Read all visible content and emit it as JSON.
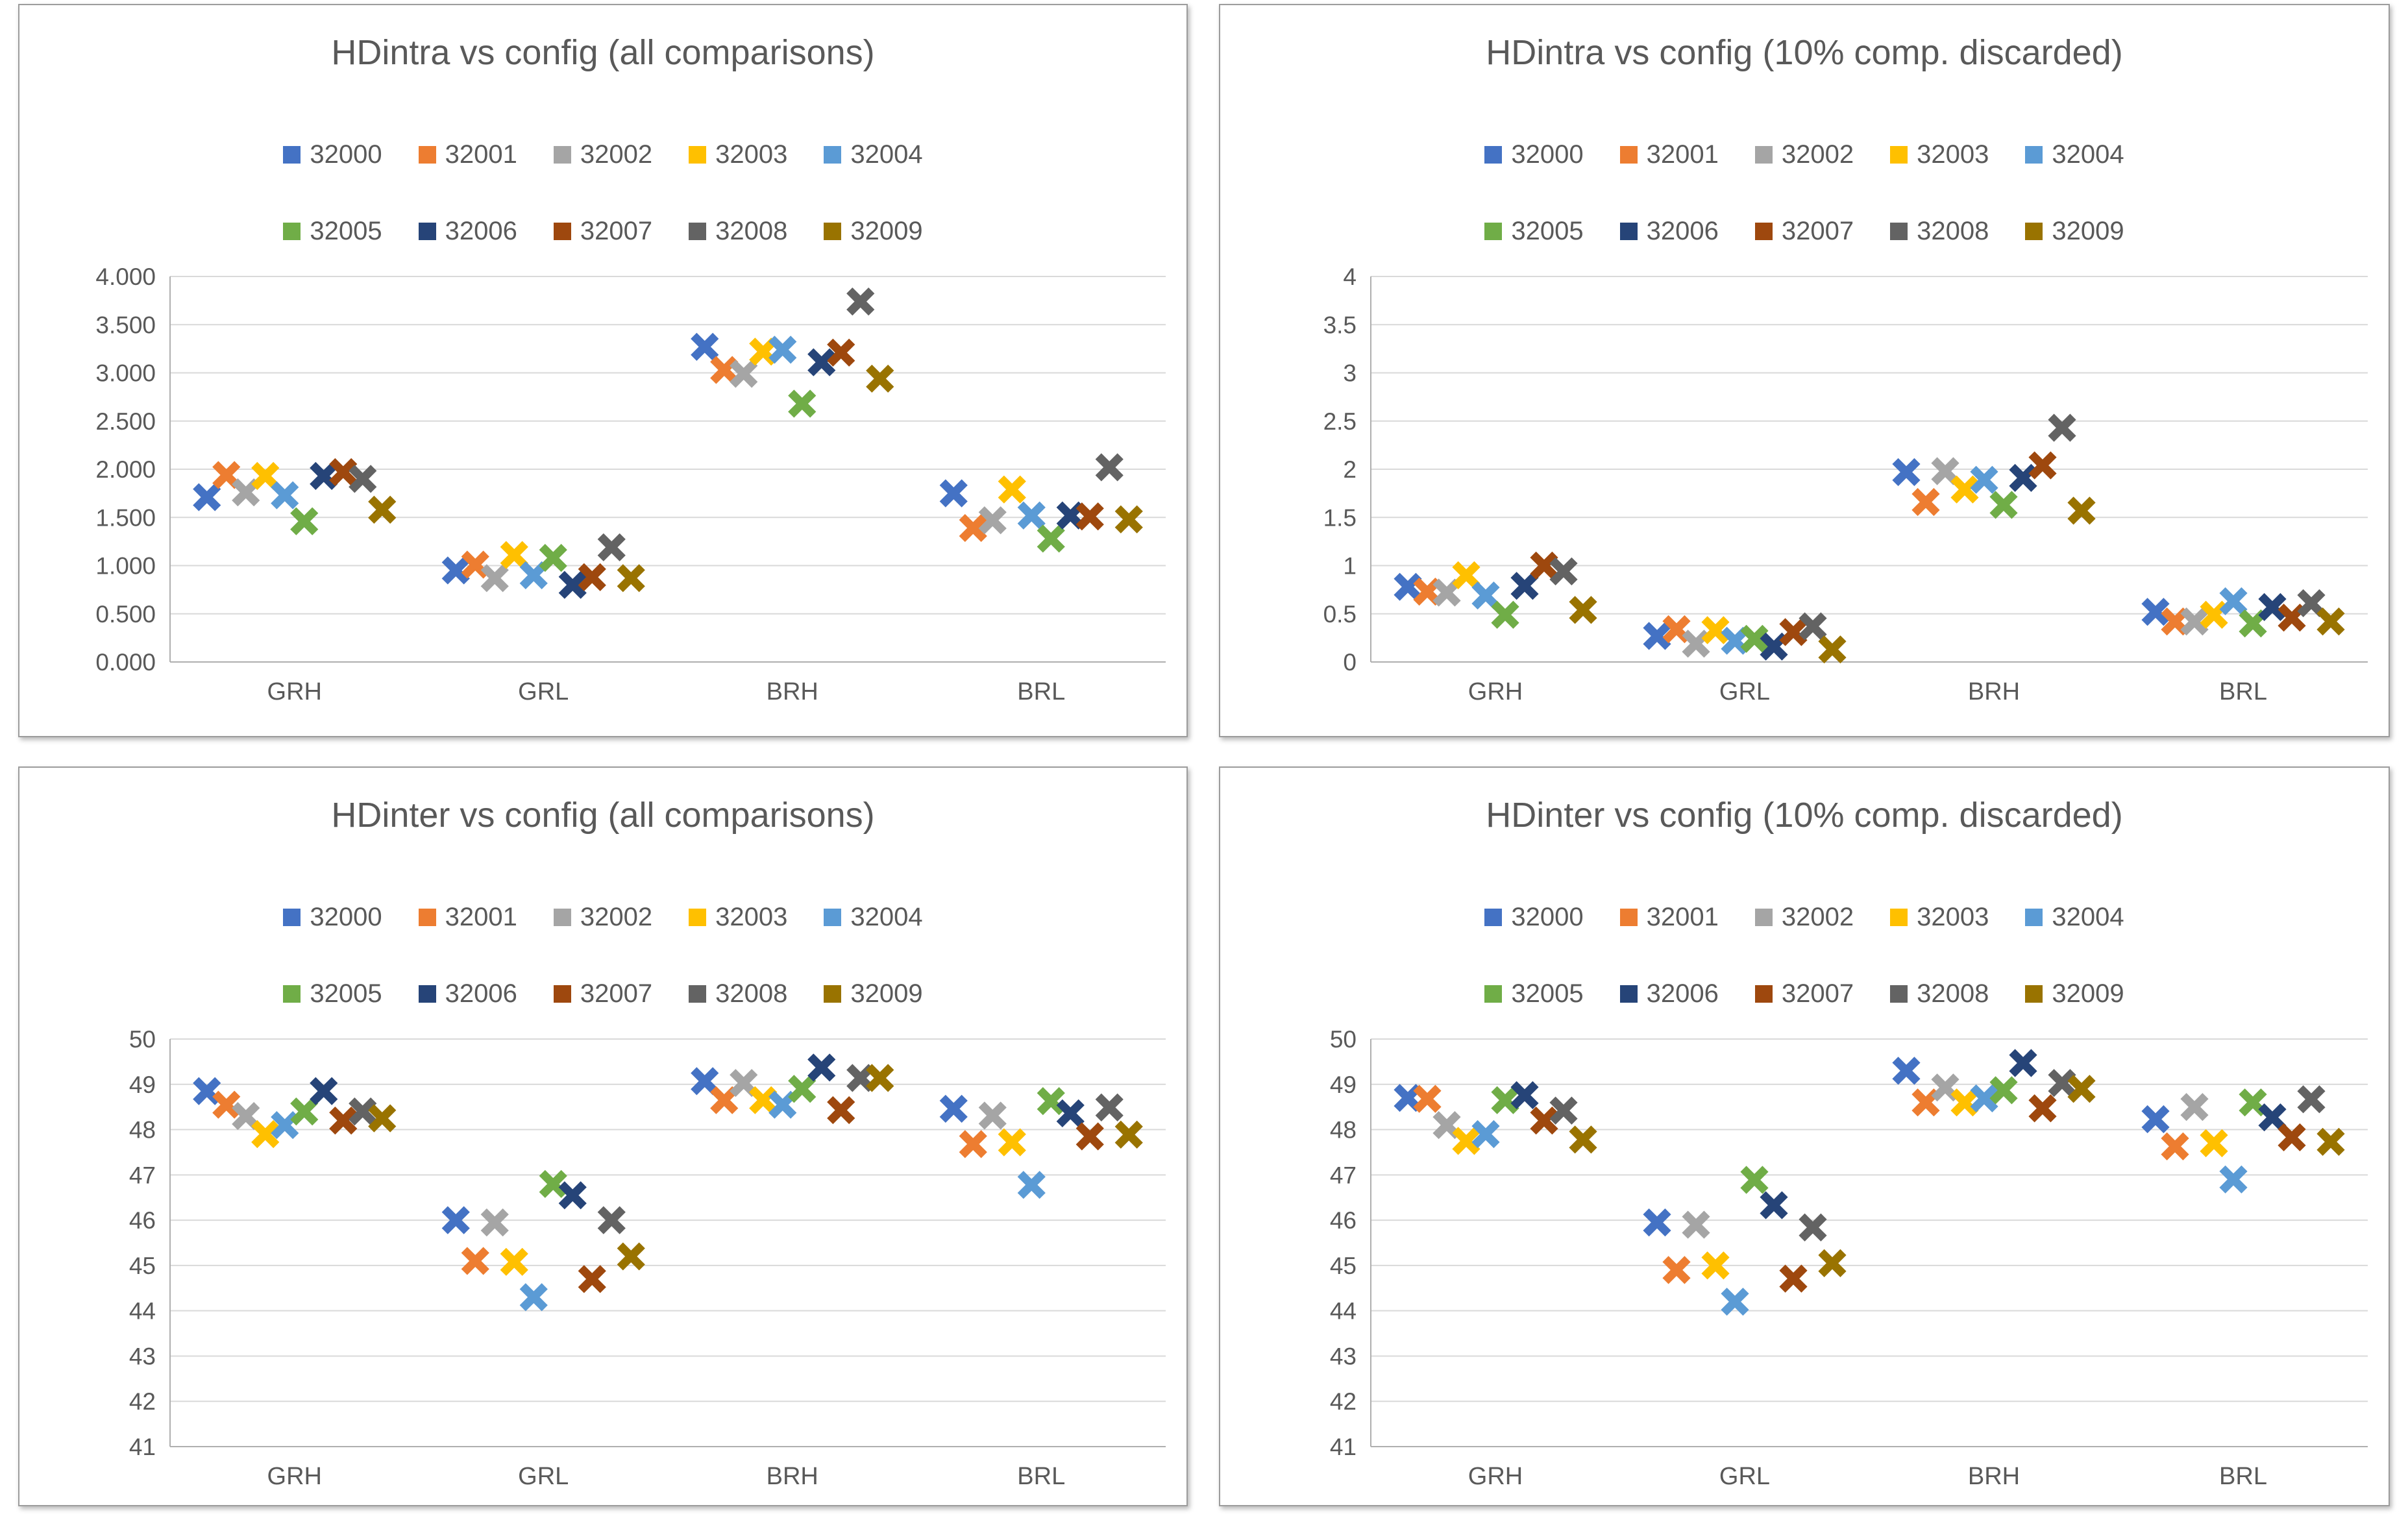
{
  "page": {
    "background_color": "#ffffff",
    "panel_border_color": "#9c9c9c",
    "gridline_color": "#d9d9d9",
    "axis_line_color": "#afafaf",
    "text_color": "#595959"
  },
  "chart_data": [
    {
      "type": "scatter",
      "title": "HDintra vs config (all comparisons)",
      "marker": "x",
      "legend_position": "top",
      "grid": true,
      "categories": [
        "GRH",
        "GRL",
        "BRH",
        "BRL"
      ],
      "y_axis": {
        "min": 0,
        "max": 4,
        "step": 0.5,
        "tick_labels": [
          "4.000",
          "3.500",
          "3.000",
          "2.500",
          "2.000",
          "1.500",
          "1.000",
          "0.500",
          "0.000"
        ]
      },
      "series": [
        {
          "name": "32000",
          "color": "#4472C4",
          "values": [
            1.71,
            0.95,
            3.27,
            1.75
          ]
        },
        {
          "name": "32001",
          "color": "#ED7D31",
          "values": [
            1.94,
            1.01,
            3.03,
            1.39
          ]
        },
        {
          "name": "32002",
          "color": "#A5A5A5",
          "values": [
            1.76,
            0.87,
            2.99,
            1.47
          ]
        },
        {
          "name": "32003",
          "color": "#FFC000",
          "values": [
            1.93,
            1.11,
            3.22,
            1.79
          ]
        },
        {
          "name": "32004",
          "color": "#5B9BD5",
          "values": [
            1.73,
            0.9,
            3.24,
            1.52
          ]
        },
        {
          "name": "32005",
          "color": "#70AD47",
          "values": [
            1.46,
            1.08,
            2.68,
            1.28
          ]
        },
        {
          "name": "32006",
          "color": "#264478",
          "values": [
            1.93,
            0.8,
            3.11,
            1.52
          ]
        },
        {
          "name": "32007",
          "color": "#9E480E",
          "values": [
            1.97,
            0.88,
            3.21,
            1.51
          ]
        },
        {
          "name": "32008",
          "color": "#636363",
          "values": [
            1.9,
            1.19,
            3.74,
            2.02
          ]
        },
        {
          "name": "32009",
          "color": "#997300",
          "values": [
            1.58,
            0.87,
            2.94,
            1.48
          ]
        }
      ]
    },
    {
      "type": "scatter",
      "title": "HDintra vs config (10% comp. discarded)",
      "marker": "x",
      "legend_position": "top",
      "grid": true,
      "categories": [
        "GRH",
        "GRL",
        "BRH",
        "BRL"
      ],
      "y_axis": {
        "min": 0,
        "max": 4,
        "step": 0.5,
        "tick_labels": [
          "4",
          "3.5",
          "3",
          "2.5",
          "2",
          "1.5",
          "1",
          "0.5",
          "0"
        ]
      },
      "series": [
        {
          "name": "32000",
          "color": "#4472C4",
          "values": [
            0.78,
            0.27,
            1.97,
            0.52
          ]
        },
        {
          "name": "32001",
          "color": "#ED7D31",
          "values": [
            0.73,
            0.34,
            1.66,
            0.42
          ]
        },
        {
          "name": "32002",
          "color": "#A5A5A5",
          "values": [
            0.72,
            0.19,
            1.98,
            0.42
          ]
        },
        {
          "name": "32003",
          "color": "#FFC000",
          "values": [
            0.9,
            0.33,
            1.79,
            0.49
          ]
        },
        {
          "name": "32004",
          "color": "#5B9BD5",
          "values": [
            0.69,
            0.22,
            1.89,
            0.63
          ]
        },
        {
          "name": "32005",
          "color": "#70AD47",
          "values": [
            0.49,
            0.24,
            1.63,
            0.4
          ]
        },
        {
          "name": "32006",
          "color": "#264478",
          "values": [
            0.79,
            0.16,
            1.91,
            0.57
          ]
        },
        {
          "name": "32007",
          "color": "#9E480E",
          "values": [
            1.0,
            0.31,
            2.04,
            0.46
          ]
        },
        {
          "name": "32008",
          "color": "#636363",
          "values": [
            0.94,
            0.37,
            2.43,
            0.61
          ]
        },
        {
          "name": "32009",
          "color": "#997300",
          "values": [
            0.54,
            0.13,
            1.57,
            0.42
          ]
        }
      ]
    },
    {
      "type": "scatter",
      "title": "HDinter vs config (all comparisons)",
      "marker": "x",
      "legend_position": "top",
      "grid": true,
      "categories": [
        "GRH",
        "GRL",
        "BRH",
        "BRL"
      ],
      "y_axis": {
        "min": 41,
        "max": 50,
        "step": 1,
        "tick_labels": [
          "50",
          "49",
          "48",
          "47",
          "46",
          "45",
          "44",
          "43",
          "42",
          "41"
        ]
      },
      "series": [
        {
          "name": "32000",
          "color": "#4472C4",
          "values": [
            48.85,
            46.0,
            49.07,
            48.46
          ]
        },
        {
          "name": "32001",
          "color": "#ED7D31",
          "values": [
            48.55,
            45.1,
            48.65,
            47.68
          ]
        },
        {
          "name": "32002",
          "color": "#A5A5A5",
          "values": [
            48.3,
            45.95,
            49.03,
            48.31
          ]
        },
        {
          "name": "32003",
          "color": "#FFC000",
          "values": [
            47.9,
            45.08,
            48.65,
            47.72
          ]
        },
        {
          "name": "32004",
          "color": "#5B9BD5",
          "values": [
            48.1,
            44.3,
            48.55,
            46.78
          ]
        },
        {
          "name": "32005",
          "color": "#70AD47",
          "values": [
            48.4,
            46.8,
            48.9,
            48.63
          ]
        },
        {
          "name": "32006",
          "color": "#264478",
          "values": [
            48.85,
            46.55,
            49.37,
            48.36
          ]
        },
        {
          "name": "32007",
          "color": "#9E480E",
          "values": [
            48.2,
            44.7,
            48.43,
            47.85
          ]
        },
        {
          "name": "32008",
          "color": "#636363",
          "values": [
            48.4,
            46.0,
            49.14,
            48.49
          ]
        },
        {
          "name": "32009",
          "color": "#997300",
          "values": [
            48.25,
            45.2,
            49.14,
            47.89
          ]
        }
      ]
    },
    {
      "type": "scatter",
      "title": "HDinter vs config (10% comp. discarded)",
      "marker": "x",
      "legend_position": "top",
      "grid": true,
      "categories": [
        "GRH",
        "GRL",
        "BRH",
        "BRL"
      ],
      "y_axis": {
        "min": 41,
        "max": 50,
        "step": 1,
        "tick_labels": [
          "50",
          "49",
          "48",
          "47",
          "46",
          "45",
          "44",
          "43",
          "42",
          "41"
        ]
      },
      "series": [
        {
          "name": "32000",
          "color": "#4472C4",
          "values": [
            48.7,
            45.95,
            49.3,
            48.23
          ]
        },
        {
          "name": "32001",
          "color": "#ED7D31",
          "values": [
            48.68,
            44.9,
            48.6,
            47.63
          ]
        },
        {
          "name": "32002",
          "color": "#A5A5A5",
          "values": [
            48.1,
            45.9,
            48.93,
            48.5
          ]
        },
        {
          "name": "32003",
          "color": "#FFC000",
          "values": [
            47.75,
            45.0,
            48.6,
            47.7
          ]
        },
        {
          "name": "32004",
          "color": "#5B9BD5",
          "values": [
            47.9,
            44.2,
            48.69,
            46.9
          ]
        },
        {
          "name": "32005",
          "color": "#70AD47",
          "values": [
            48.65,
            46.89,
            48.87,
            48.6
          ]
        },
        {
          "name": "32006",
          "color": "#264478",
          "values": [
            48.76,
            46.33,
            49.47,
            48.27
          ]
        },
        {
          "name": "32007",
          "color": "#9E480E",
          "values": [
            48.2,
            44.71,
            48.47,
            47.83
          ]
        },
        {
          "name": "32008",
          "color": "#636363",
          "values": [
            48.42,
            45.84,
            49.03,
            48.67
          ]
        },
        {
          "name": "32009",
          "color": "#997300",
          "values": [
            47.78,
            45.05,
            48.9,
            47.73
          ]
        }
      ]
    }
  ]
}
